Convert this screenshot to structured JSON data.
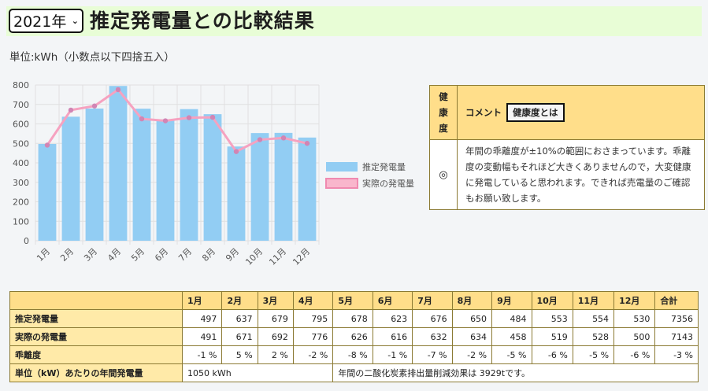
{
  "header": {
    "year_selected": "2021年",
    "title": "推定発電量との比較結果"
  },
  "unit_note": "単位:kWh（小数点以下四捨五入）",
  "chart_data": {
    "type": "bar",
    "categories": [
      "1月",
      "2月",
      "3月",
      "4月",
      "5月",
      "6月",
      "7月",
      "8月",
      "9月",
      "10月",
      "11月",
      "12月"
    ],
    "series": [
      {
        "name": "推定発電量",
        "type": "bar",
        "color": "#92cdf3",
        "values": [
          497,
          637,
          679,
          795,
          678,
          623,
          676,
          650,
          484,
          553,
          554,
          530
        ]
      },
      {
        "name": "実際の発電量",
        "type": "line",
        "color": "#f6a2c0",
        "values": [
          491,
          671,
          692,
          776,
          626,
          616,
          632,
          634,
          458,
          519,
          528,
          500
        ]
      }
    ],
    "ylim": [
      0,
      800
    ],
    "yticks": [
      0,
      100,
      200,
      300,
      400,
      500,
      600,
      700,
      800
    ],
    "legend_position": "right"
  },
  "health": {
    "header_label": "健康度",
    "comment_label": "コメント",
    "button_label": "健康度とは",
    "mark": "◎",
    "comment": "年間の乖離度が±10%の範囲におさまっています。乖離度の変動幅もそれほど大きくありませんので，大変健康に発電していると思われます。できれば売電量のご確認もお願い致します。"
  },
  "table": {
    "months": [
      "1月",
      "2月",
      "3月",
      "4月",
      "5月",
      "6月",
      "7月",
      "8月",
      "9月",
      "10月",
      "11月",
      "12月"
    ],
    "total_label": "合計",
    "rows": [
      {
        "label": "推定発電量",
        "values": [
          "497",
          "637",
          "679",
          "795",
          "678",
          "623",
          "676",
          "650",
          "484",
          "553",
          "554",
          "530"
        ],
        "total": "7356"
      },
      {
        "label": "実際の発電量",
        "values": [
          "491",
          "671",
          "692",
          "776",
          "626",
          "616",
          "632",
          "634",
          "458",
          "519",
          "528",
          "500"
        ],
        "total": "7143"
      },
      {
        "label": "乖離度",
        "values": [
          "-1 %",
          "5 %",
          "2 %",
          "-2 %",
          "-8 %",
          "-1 %",
          "-7 %",
          "-2 %",
          "-5 %",
          "-6 %",
          "-5 %",
          "-6 %"
        ],
        "total": "-3 %"
      }
    ],
    "annual_label": "単位（kW）あたりの年間発電量",
    "annual_value": "1050 kWh",
    "co2_text": "年間の二酸化炭素排出量削減効果は 3929tです。"
  }
}
